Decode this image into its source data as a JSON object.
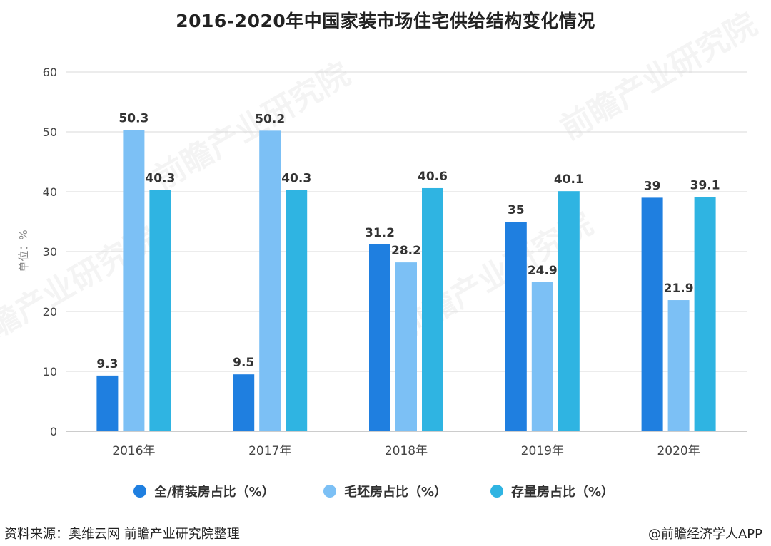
{
  "chart_data": {
    "type": "bar",
    "title": "2016-2020年中国家装市场住宅供给结构变化情况",
    "xlabel": "",
    "ylabel": "单位：%",
    "ylim": [
      0,
      60
    ],
    "yticks": [
      0,
      10,
      20,
      30,
      40,
      50,
      60
    ],
    "categories": [
      "2016年",
      "2017年",
      "2018年",
      "2019年",
      "2020年"
    ],
    "series": [
      {
        "name": "全/精装房占比（%）",
        "color": "#1f7fe0",
        "values": [
          9.3,
          9.5,
          31.2,
          35,
          39
        ],
        "labels": [
          "9.3",
          "9.5",
          "31.2",
          "35",
          "39"
        ]
      },
      {
        "name": "毛坯房占比（%）",
        "color": "#7cc0f5",
        "values": [
          50.3,
          50.2,
          28.2,
          24.9,
          21.9
        ],
        "labels": [
          "50.3",
          "50.2",
          "28.2",
          "24.9",
          "21.9"
        ]
      },
      {
        "name": "存量房占比（%）",
        "color": "#2fb4e2",
        "values": [
          40.3,
          40.3,
          40.6,
          40.1,
          39.1
        ],
        "labels": [
          "40.3",
          "40.3",
          "40.6",
          "40.1",
          "39.1"
        ]
      }
    ],
    "grid": true,
    "legend_position": "bottom"
  },
  "footer": {
    "source": "资料来源：奥维云网 前瞻产业研究院整理",
    "brand": "@前瞻经济学人APP"
  },
  "watermark": {
    "text": "前瞻产业研究院"
  }
}
